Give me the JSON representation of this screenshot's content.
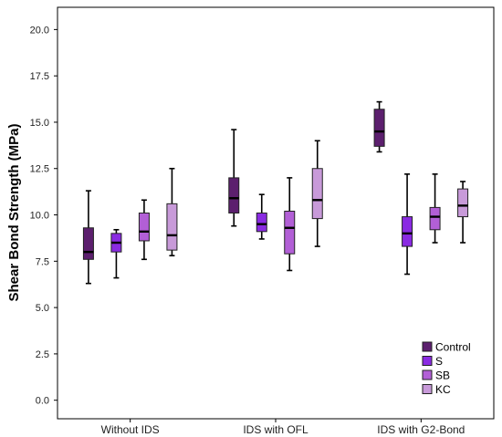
{
  "chart_data": {
    "type": "box",
    "ylabel": "Shear Bond Strength (MPa)",
    "ylim": [
      -1.0,
      21.2
    ],
    "yticks": [
      "0.0",
      "2.5",
      "5.0",
      "7.5",
      "10.0",
      "12.5",
      "15.0",
      "17.5",
      "20.0"
    ],
    "categories": [
      "Without IDS",
      "IDS with OFL",
      "IDS with G2-Bond"
    ],
    "legend_position": "bottom-right",
    "series": [
      {
        "name": "Control",
        "color": "#5c1f6e",
        "boxes": [
          {
            "min": 6.3,
            "q1": 7.6,
            "median": 8.0,
            "q3": 9.3,
            "max": 11.3
          },
          {
            "min": 9.4,
            "q1": 10.1,
            "median": 10.9,
            "q3": 12.0,
            "max": 14.6
          },
          {
            "min": 13.4,
            "q1": 13.7,
            "median": 14.5,
            "q3": 15.7,
            "max": 16.1
          }
        ]
      },
      {
        "name": "S",
        "color": "#8a2be2",
        "boxes": [
          {
            "min": 6.6,
            "q1": 8.0,
            "median": 8.5,
            "q3": 9.0,
            "max": 9.2
          },
          {
            "min": 8.7,
            "q1": 9.1,
            "median": 9.5,
            "q3": 10.1,
            "max": 11.1
          },
          {
            "min": 6.8,
            "q1": 8.3,
            "median": 9.0,
            "q3": 9.9,
            "max": 12.2
          }
        ]
      },
      {
        "name": "SB",
        "color": "#b25fd6",
        "boxes": [
          {
            "min": 7.6,
            "q1": 8.6,
            "median": 9.1,
            "q3": 10.1,
            "max": 10.8
          },
          {
            "min": 7.0,
            "q1": 7.9,
            "median": 9.3,
            "q3": 10.2,
            "max": 12.0
          },
          {
            "min": 8.5,
            "q1": 9.2,
            "median": 9.9,
            "q3": 10.4,
            "max": 12.2
          }
        ]
      },
      {
        "name": "KC",
        "color": "#c89ad9",
        "boxes": [
          {
            "min": 7.8,
            "q1": 8.1,
            "median": 8.9,
            "q3": 10.6,
            "max": 12.5
          },
          {
            "min": 8.3,
            "q1": 9.8,
            "median": 10.8,
            "q3": 12.5,
            "max": 14.0
          },
          {
            "min": 8.5,
            "q1": 9.9,
            "median": 10.5,
            "q3": 11.4,
            "max": 11.8
          }
        ]
      }
    ]
  }
}
